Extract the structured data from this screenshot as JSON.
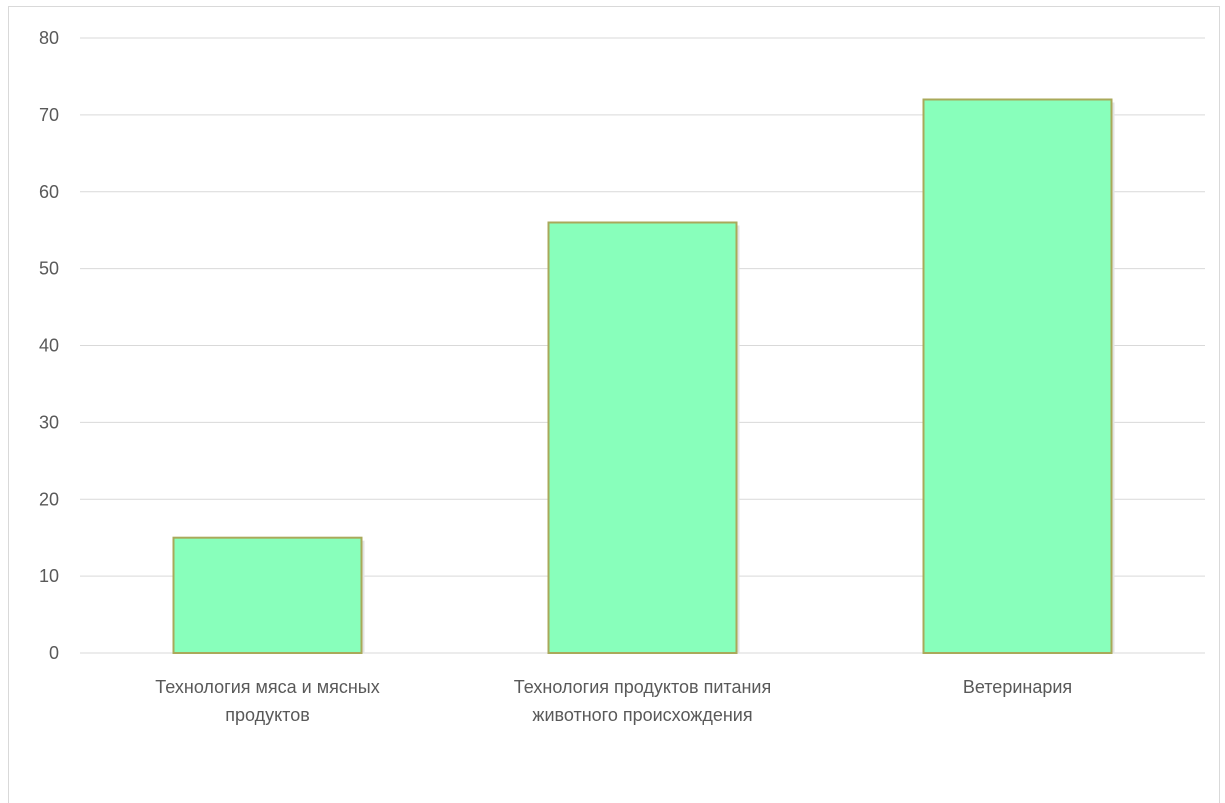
{
  "chart_data": {
    "type": "bar",
    "categories": [
      [
        "Технология мяса и мясных",
        "продуктов"
      ],
      [
        "Технология продуктов питания",
        "животного происхождения"
      ],
      [
        "Ветеринария"
      ]
    ],
    "values": [
      15,
      56,
      72
    ],
    "ylim": [
      0,
      80
    ],
    "yticks": [
      0,
      10,
      20,
      30,
      40,
      50,
      60,
      70,
      80
    ],
    "grid": true,
    "legend": "none",
    "colors": {
      "bar_fill": "#88ffbb",
      "bar_stroke": "#a9a95a",
      "grid": "#d9d9d9",
      "text": "#595959"
    }
  }
}
